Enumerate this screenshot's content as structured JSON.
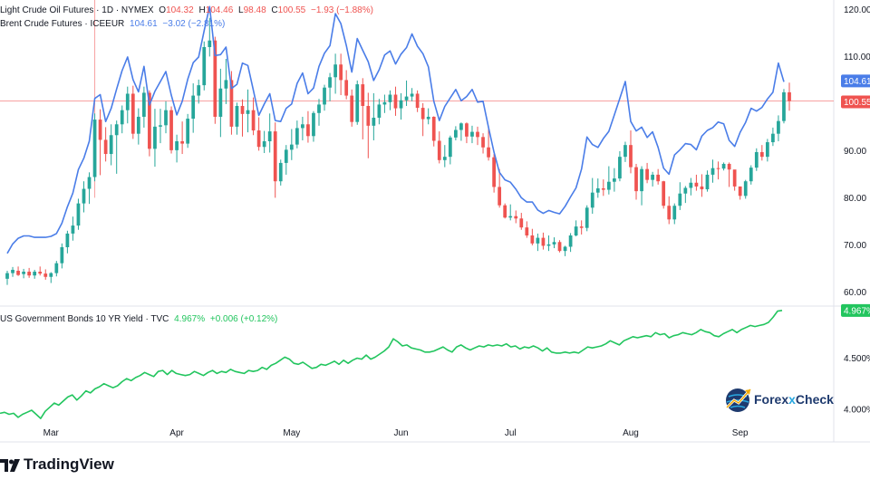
{
  "legend": {
    "wti": {
      "name": "Light Crude Oil Futures · 1D · NYMEX",
      "o_label": "O",
      "o": "104.32",
      "h_label": "H",
      "h": "104.46",
      "l_label": "L",
      "l": "98.48",
      "c_label": "C",
      "c": "100.55",
      "chg": "−1.93 (−1.88%)"
    },
    "brent": {
      "name": "Brent Crude Futures · ICEEUR",
      "last": "104.61",
      "chg": "−3.02 (−2.81%)"
    },
    "us10y": {
      "name": "US Government Bonds 10 YR Yield · TVC",
      "last": "4.967%",
      "chg": "+0.006 (+0.12%)"
    }
  },
  "branding": {
    "tradingview": "TradingView",
    "forexcheck_a": "Forex",
    "forexcheck_x": "x",
    "forexcheck_b": "Check"
  },
  "colors": {
    "up": "#26a69a",
    "down": "#ef5350",
    "brent": "#4a7de8",
    "yield": "#22c55e",
    "crosshair": "#f7a1a1"
  },
  "chart_data": [
    {
      "type": "candlestick",
      "title": "Light Crude Oil Futures · 1D · NYMEX",
      "y_ticks": [
        "120.00",
        "110.00",
        "100.00",
        "90.00",
        "80.00",
        "70.00",
        "60.00"
      ],
      "ylim": [
        57,
        122
      ],
      "x_labels": [
        "Mar",
        "Apr",
        "May",
        "Jun",
        "Jul",
        "Aug",
        "Sep"
      ],
      "last_value_labels": {
        "brent": "104.61",
        "wti": "100.55"
      },
      "ohlc": [
        [
          62.8,
          64.5,
          61.5,
          64.0
        ],
        [
          64.0,
          65.3,
          63.2,
          64.7
        ],
        [
          64.5,
          65.4,
          63.4,
          63.6
        ],
        [
          63.8,
          64.9,
          62.9,
          64.3
        ],
        [
          64.3,
          65.1,
          63.0,
          63.5
        ],
        [
          63.5,
          64.7,
          62.8,
          64.3
        ],
        [
          64.3,
          65.4,
          63.5,
          63.9
        ],
        [
          63.9,
          64.8,
          62.6,
          63.2
        ],
        [
          63.2,
          64.2,
          61.9,
          64.0
        ],
        [
          64.0,
          66.6,
          63.3,
          66.1
        ],
        [
          66.1,
          70.3,
          65.0,
          69.5
        ],
        [
          69.5,
          73.0,
          68.2,
          72.4
        ],
        [
          72.4,
          76.0,
          70.9,
          74.1
        ],
        [
          74.1,
          79.8,
          73.2,
          78.8
        ],
        [
          78.8,
          83.5,
          76.9,
          81.9
        ],
        [
          81.9,
          85.4,
          78.7,
          84.4
        ],
        [
          84.4,
          97.9,
          83.5,
          96.6
        ],
        [
          96.6,
          98.8,
          84.8,
          92.3
        ],
        [
          92.3,
          95.0,
          87.7,
          89.3
        ],
        [
          89.3,
          95.6,
          86.9,
          93.3
        ],
        [
          93.3,
          96.4,
          85.1,
          95.6
        ],
        [
          95.6,
          99.6,
          93.7,
          98.6
        ],
        [
          98.6,
          103.6,
          95.8,
          102.1
        ],
        [
          102.1,
          103.8,
          92.5,
          93.6
        ],
        [
          93.6,
          99.0,
          91.3,
          97.2
        ],
        [
          97.2,
          103.6,
          94.9,
          102.3
        ],
        [
          102.3,
          102.8,
          88.8,
          90.4
        ],
        [
          90.4,
          98.9,
          86.6,
          95.1
        ],
        [
          95.1,
          98.9,
          91.6,
          95.4
        ],
        [
          95.4,
          100.5,
          93.7,
          98.6
        ],
        [
          98.6,
          99.4,
          89.4,
          90.1
        ],
        [
          90.1,
          93.4,
          87.5,
          92.0
        ],
        [
          92.0,
          96.2,
          89.3,
          91.5
        ],
        [
          91.5,
          97.8,
          90.6,
          96.8
        ],
        [
          96.8,
          104.3,
          93.8,
          101.7
        ],
        [
          101.7,
          105.1,
          100.0,
          103.9
        ],
        [
          103.9,
          113.2,
          102.8,
          112.0
        ],
        [
          112.0,
          118.2,
          110.0,
          113.4
        ],
        [
          113.4,
          114.2,
          95.7,
          97.2
        ],
        [
          97.2,
          107.4,
          92.9,
          103.2
        ],
        [
          103.2,
          109.5,
          99.9,
          105.0
        ],
        [
          105.0,
          106.9,
          93.4,
          95.1
        ],
        [
          95.1,
          100.2,
          93.4,
          99.5
        ],
        [
          99.5,
          100.9,
          93.0,
          97.8
        ],
        [
          97.8,
          103.0,
          93.9,
          98.6
        ],
        [
          98.6,
          101.3,
          93.3,
          94.3
        ],
        [
          94.3,
          97.1,
          90.0,
          90.8
        ],
        [
          90.8,
          94.2,
          89.5,
          92.0
        ],
        [
          92.0,
          97.9,
          89.6,
          94.1
        ],
        [
          94.1,
          96.0,
          80.0,
          83.5
        ],
        [
          83.5,
          88.1,
          82.6,
          87.4
        ],
        [
          87.4,
          91.2,
          84.9,
          90.2
        ],
        [
          90.2,
          94.6,
          88.0,
          91.3
        ],
        [
          91.3,
          96.4,
          90.5,
          94.8
        ],
        [
          94.8,
          97.2,
          92.2,
          95.6
        ],
        [
          95.6,
          98.4,
          91.7,
          93.1
        ],
        [
          93.1,
          98.4,
          91.9,
          98.0
        ],
        [
          98.0,
          101.0,
          95.3,
          99.8
        ],
        [
          99.8,
          104.0,
          98.5,
          103.4
        ],
        [
          103.4,
          106.5,
          100.5,
          105.6
        ],
        [
          105.6,
          110.6,
          102.1,
          108.3
        ],
        [
          108.3,
          110.6,
          101.8,
          105.0
        ],
        [
          105.0,
          107.1,
          100.9,
          101.7
        ],
        [
          101.7,
          103.0,
          95.1,
          96.1
        ],
        [
          96.1,
          104.9,
          95.5,
          104.1
        ],
        [
          104.1,
          105.4,
          92.4,
          99.5
        ],
        [
          99.5,
          102.3,
          88.4,
          95.3
        ],
        [
          95.3,
          102.2,
          92.2,
          97.0
        ],
        [
          97.0,
          101.0,
          95.6,
          99.8
        ],
        [
          99.8,
          101.9,
          98.0,
          100.3
        ],
        [
          100.3,
          102.8,
          98.6,
          101.9
        ],
        [
          101.9,
          103.6,
          97.4,
          99.0
        ],
        [
          99.0,
          102.2,
          96.6,
          100.7
        ],
        [
          100.7,
          104.9,
          99.5,
          101.5
        ],
        [
          101.5,
          103.3,
          100.5,
          102.1
        ],
        [
          102.1,
          102.8,
          98.2,
          99.1
        ],
        [
          99.1,
          100.1,
          93.1,
          96.7
        ],
        [
          96.7,
          99.0,
          95.6,
          97.2
        ],
        [
          97.2,
          97.3,
          90.9,
          92.1
        ],
        [
          92.1,
          94.1,
          87.3,
          88.0
        ],
        [
          88.0,
          91.2,
          86.5,
          88.7
        ],
        [
          88.7,
          93.2,
          87.1,
          92.8
        ],
        [
          92.8,
          95.2,
          92.2,
          94.4
        ],
        [
          94.4,
          96.0,
          92.1,
          95.8
        ],
        [
          95.8,
          96.0,
          91.6,
          93.0
        ],
        [
          93.0,
          95.3,
          91.6,
          94.0
        ],
        [
          94.0,
          95.1,
          91.2,
          92.9
        ],
        [
          92.9,
          93.7,
          89.4,
          90.7
        ],
        [
          90.7,
          94.6,
          87.9,
          88.6
        ],
        [
          88.6,
          89.3,
          81.1,
          82.3
        ],
        [
          82.3,
          86.1,
          77.9,
          78.4
        ],
        [
          78.4,
          78.8,
          75.6,
          75.8
        ],
        [
          75.8,
          78.6,
          75.2,
          76.1
        ],
        [
          76.1,
          77.3,
          74.6,
          75.6
        ],
        [
          75.6,
          76.8,
          73.2,
          73.7
        ],
        [
          73.7,
          75.0,
          71.5,
          72.0
        ],
        [
          72.0,
          73.4,
          69.9,
          70.3
        ],
        [
          70.3,
          72.4,
          68.7,
          71.5
        ],
        [
          71.5,
          72.6,
          69.0,
          69.8
        ],
        [
          69.8,
          72.0,
          68.7,
          70.1
        ],
        [
          70.1,
          71.6,
          69.3,
          70.6
        ],
        [
          70.6,
          71.0,
          68.4,
          68.7
        ],
        [
          68.7,
          69.8,
          67.6,
          69.6
        ],
        [
          69.6,
          72.5,
          68.5,
          72.0
        ],
        [
          72.0,
          75.2,
          71.8,
          73.9
        ],
        [
          73.9,
          75.2,
          72.2,
          73.6
        ],
        [
          73.6,
          78.4,
          72.9,
          77.9
        ],
        [
          77.9,
          84.2,
          76.6,
          81.1
        ],
        [
          81.1,
          84.1,
          80.0,
          82.0
        ],
        [
          82.0,
          83.9,
          80.4,
          81.7
        ],
        [
          81.7,
          86.7,
          80.7,
          83.4
        ],
        [
          83.4,
          86.3,
          81.3,
          84.1
        ],
        [
          84.1,
          89.9,
          83.5,
          88.7
        ],
        [
          88.7,
          91.9,
          87.6,
          91.2
        ],
        [
          91.2,
          94.3,
          85.2,
          86.5
        ],
        [
          86.5,
          87.2,
          79.6,
          81.4
        ],
        [
          81.4,
          86.7,
          78.4,
          86.1
        ],
        [
          86.1,
          87.4,
          83.1,
          83.8
        ],
        [
          83.8,
          85.5,
          82.4,
          84.9
        ],
        [
          84.9,
          86.1,
          82.8,
          83.5
        ],
        [
          83.5,
          83.6,
          77.7,
          78.3
        ],
        [
          78.3,
          80.3,
          74.4,
          75.4
        ],
        [
          75.4,
          78.8,
          74.4,
          78.3
        ],
        [
          78.3,
          83.3,
          77.4,
          80.9
        ],
        [
          80.9,
          82.5,
          78.9,
          82.1
        ],
        [
          82.1,
          84.2,
          80.5,
          83.2
        ],
        [
          83.2,
          84.9,
          81.5,
          82.4
        ],
        [
          82.4,
          85.0,
          80.2,
          81.8
        ],
        [
          81.8,
          85.8,
          81.3,
          84.9
        ],
        [
          84.9,
          88.1,
          83.2,
          86.3
        ],
        [
          86.3,
          87.7,
          83.9,
          86.2
        ],
        [
          86.2,
          87.5,
          85.8,
          87.2
        ],
        [
          87.2,
          87.5,
          82.3,
          86.0
        ],
        [
          86.0,
          85.6,
          81.5,
          82.4
        ],
        [
          82.4,
          82.4,
          79.6,
          80.4
        ],
        [
          80.4,
          83.8,
          79.8,
          83.5
        ],
        [
          83.5,
          86.9,
          82.8,
          86.4
        ],
        [
          86.4,
          90.5,
          85.7,
          89.7
        ],
        [
          89.7,
          91.2,
          87.9,
          88.7
        ],
        [
          88.7,
          92.5,
          87.7,
          91.8
        ],
        [
          91.8,
          94.9,
          91.0,
          93.6
        ],
        [
          93.6,
          97.5,
          92.0,
          96.3
        ],
        [
          96.3,
          103.1,
          95.8,
          102.4
        ],
        [
          102.4,
          104.46,
          98.48,
          100.55
        ]
      ],
      "brent_close": [
        68.2,
        70.2,
        71.4,
        71.9,
        71.9,
        71.6,
        71.6,
        71.6,
        71.8,
        72.4,
        74.6,
        78.1,
        81.0,
        86.0,
        88.4,
        92.0,
        101.1,
        101.9,
        96.2,
        99.0,
        103.1,
        107.0,
        109.9,
        105.1,
        102.5,
        107.9,
        99.7,
        102.6,
        104.7,
        106.8,
        101.8,
        97.6,
        100.5,
        105.2,
        108.7,
        109.9,
        115.5,
        120.6,
        110.2,
        110.4,
        112.0,
        103.2,
        104.1,
        108.6,
        108.1,
        102.8,
        97.5,
        99.9,
        102.1,
        96.4,
        96.2,
        99.0,
        99.9,
        104.3,
        106.5,
        102.1,
        103.3,
        107.9,
        110.7,
        112.3,
        119.1,
        117.0,
        112.3,
        106.7,
        113.8,
        111.3,
        108.9,
        104.9,
        107.2,
        110.3,
        111.2,
        108.4,
        110.5,
        111.9,
        114.8,
        112.2,
        110.6,
        107.8,
        100.5,
        96.4,
        99.4,
        101.2,
        103.0,
        100.6,
        101.5,
        103.0,
        100.3,
        100.5,
        94.9,
        89.7,
        85.4,
        83.8,
        83.3,
        81.8,
        80.0,
        79.1,
        79.1,
        77.4,
        76.7,
        77.3,
        76.9,
        76.6,
        78.2,
        80.2,
        82.1,
        86.1,
        92.9,
        91.3,
        90.7,
        92.6,
        94.1,
        97.6,
        101.1,
        104.7,
        96.2,
        94.2,
        95.0,
        92.8,
        94.0,
        90.7,
        86.3,
        85.0,
        89.1,
        90.2,
        91.5,
        91.3,
        90.2,
        93.1,
        94.3,
        94.9,
        96.1,
        95.7,
        92.2,
        90.9,
        93.9,
        96.0,
        99.0,
        98.4,
        99.2,
        101.0,
        102.4,
        108.6,
        104.61
      ]
    },
    {
      "type": "line",
      "title": "US Government Bonds 10 YR Yield · TVC",
      "series": [
        {
          "name": "US Government Bonds 10 YR Yield",
          "values": [
            3.96,
            3.97,
            3.95,
            3.96,
            3.92,
            3.95,
            3.97,
            3.99,
            3.95,
            3.91,
            3.98,
            4.02,
            4.06,
            4.04,
            4.08,
            4.12,
            4.14,
            4.09,
            4.13,
            4.18,
            4.16,
            4.2,
            4.22,
            4.25,
            4.23,
            4.21,
            4.23,
            4.27,
            4.3,
            4.28,
            4.31,
            4.33,
            4.36,
            4.34,
            4.32,
            4.37,
            4.38,
            4.34,
            4.38,
            4.35,
            4.34,
            4.33,
            4.34,
            4.37,
            4.35,
            4.33,
            4.36,
            4.38,
            4.35,
            4.37,
            4.36,
            4.39,
            4.37,
            4.36,
            4.35,
            4.38,
            4.37,
            4.38,
            4.41,
            4.39,
            4.43,
            4.45,
            4.48,
            4.51,
            4.49,
            4.45,
            4.44,
            4.46,
            4.43,
            4.4,
            4.41,
            4.44,
            4.43,
            4.45,
            4.47,
            4.44,
            4.48,
            4.45,
            4.48,
            4.5,
            4.49,
            4.53,
            4.49,
            4.51,
            4.54,
            4.57,
            4.61,
            4.69,
            4.66,
            4.62,
            4.63,
            4.6,
            4.59,
            4.58,
            4.56,
            4.56,
            4.57,
            4.59,
            4.61,
            4.58,
            4.56,
            4.61,
            4.63,
            4.6,
            4.58,
            4.6,
            4.62,
            4.61,
            4.63,
            4.62,
            4.63,
            4.62,
            4.64,
            4.61,
            4.62,
            4.59,
            4.61,
            4.6,
            4.62,
            4.6,
            4.57,
            4.6,
            4.56,
            4.55,
            4.55,
            4.56,
            4.55,
            4.56,
            4.55,
            4.58,
            4.61,
            4.6,
            4.61,
            4.62,
            4.64,
            4.67,
            4.65,
            4.63,
            4.67,
            4.69,
            4.71,
            4.7,
            4.71,
            4.72,
            4.71,
            4.75,
            4.73,
            4.74,
            4.7,
            4.72,
            4.73,
            4.75,
            4.74,
            4.73,
            4.75,
            4.78,
            4.76,
            4.75,
            4.72,
            4.71,
            4.74,
            4.76,
            4.78,
            4.75,
            4.78,
            4.8,
            4.82,
            4.81,
            4.82,
            4.83,
            4.85,
            4.9,
            4.96,
            4.967
          ]
        }
      ],
      "y_ticks": [
        "4.500%",
        "4.000%"
      ],
      "ylim": [
        3.68,
        5.01
      ],
      "last_value_label": "4.967%"
    }
  ]
}
